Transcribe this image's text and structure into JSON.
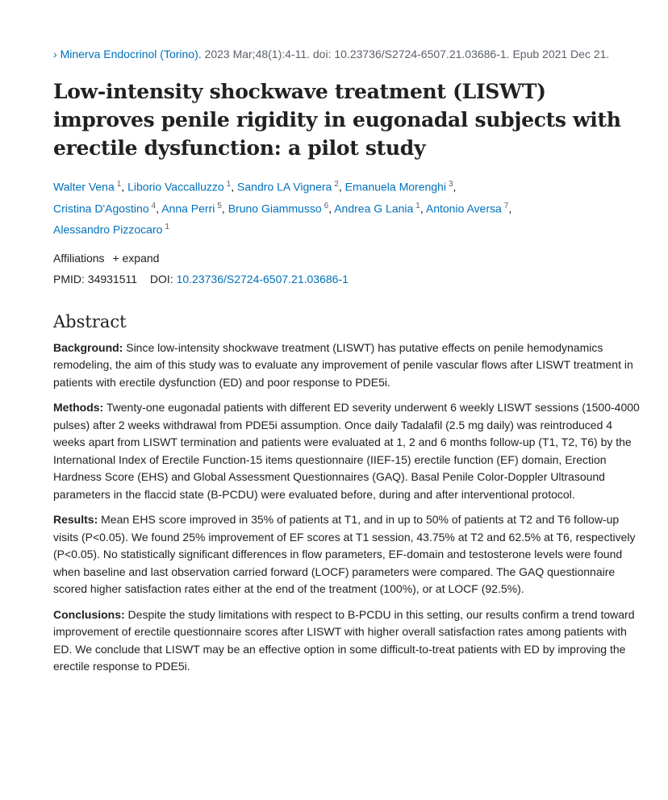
{
  "citation": {
    "journal": "Minerva Endocrinol (Torino).",
    "details": " 2023 Mar;48(1):4-11. doi: 10.23736/S2724-6507.21.03686-1. Epub 2021 Dec 21."
  },
  "title": "Low-intensity shockwave treatment (LISWT) improves penile rigidity in eugonadal subjects with erectile dysfunction: a pilot study",
  "authors": [
    {
      "name": "Walter Vena",
      "sup": "1"
    },
    {
      "name": "Liborio Vaccalluzzo",
      "sup": "1"
    },
    {
      "name": "Sandro LA Vignera",
      "sup": "2"
    },
    {
      "name": "Emanuela Morenghi",
      "sup": "3"
    },
    {
      "name": "Cristina D'Agostino",
      "sup": "4"
    },
    {
      "name": "Anna Perri",
      "sup": "5"
    },
    {
      "name": "Bruno Giammusso",
      "sup": "6"
    },
    {
      "name": "Andrea G Lania",
      "sup": "1"
    },
    {
      "name": "Antonio Aversa",
      "sup": "7"
    },
    {
      "name": "Alessandro Pizzocaro",
      "sup": "1"
    }
  ],
  "affiliations": {
    "label": "Affiliations",
    "expand": "+ expand"
  },
  "ids": {
    "pmid_label": "PMID:",
    "pmid": "34931511",
    "doi_label": "DOI:",
    "doi": "10.23736/S2724-6507.21.03686-1"
  },
  "abstract": {
    "heading": "Abstract",
    "sections": [
      {
        "label": "Background:",
        "text": " Since low-intensity shockwave treatment (LISWT) has putative effects on penile hemodynamics remodeling, the aim of this study was to evaluate any improvement of penile vascular flows after LISWT treatment in patients with erectile dysfunction (ED) and poor response to PDE5i."
      },
      {
        "label": "Methods:",
        "text": " Twenty-one eugonadal patients with different ED severity underwent 6 weekly LISWT sessions (1500-4000 pulses) after 2 weeks withdrawal from PDE5i assumption. Once daily Tadalafil (2.5 mg daily) was reintroduced 4 weeks apart from LISWT termination and patients were evaluated at 1, 2 and 6 months follow-up (T1, T2, T6) by the International Index of Erectile Function-15 items questionnaire (IIEF-15) erectile function (EF) domain, Erection Hardness Score (EHS) and Global Assessment Questionnaires (GAQ). Basal Penile Color-Doppler Ultrasound parameters in the flaccid state (B-PCDU) were evaluated before, during and after interventional protocol."
      },
      {
        "label": "Results:",
        "text": " Mean EHS score improved in 35% of patients at T1, and in up to 50% of patients at T2 and T6 follow-up visits (P<0.05). We found 25% improvement of EF scores at T1 session, 43.75% at T2 and 62.5% at T6, respectively (P<0.05). No statistically significant differences in flow parameters, EF-domain and testosterone levels were found when baseline and last observation carried forward (LOCF) parameters were compared. The GAQ questionnaire scored higher satisfaction rates either at the end of the treatment (100%), or at LOCF (92.5%)."
      },
      {
        "label": "Conclusions:",
        "text": " Despite the study limitations with respect to B-PCDU in this setting, our results confirm a trend toward improvement of erectile questionnaire scores after LISWT with higher overall satisfaction rates among patients with ED. We conclude that LISWT may be an effective option in some difficult-to-treat patients with ED by improving the erectile response to PDE5i."
      }
    ]
  }
}
